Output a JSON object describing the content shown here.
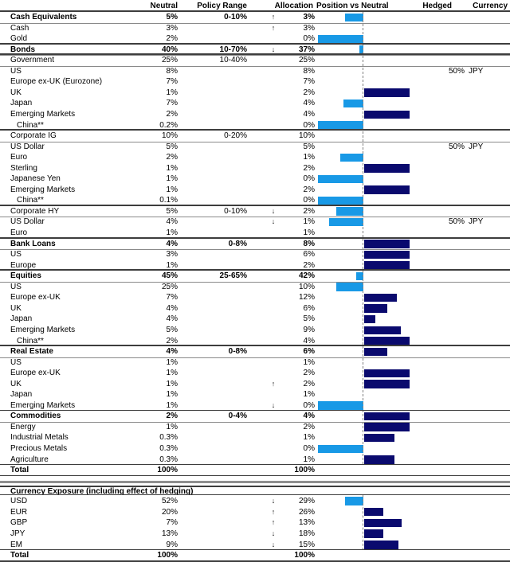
{
  "colors": {
    "underweight_bar": "#1899E6",
    "overweight_bar": "#0A0A6E",
    "rule_dark": "#3d3d3d",
    "rule_gray": "#8a8a8a"
  },
  "header": {
    "columns": [
      "Neutral",
      "Policy Range",
      "Allocation",
      "Position vs Neutral",
      "Hedged",
      "Currency"
    ]
  },
  "allocation_table": {
    "rows": [
      {
        "label": "Cash Equivalents",
        "type": "section",
        "indent": false,
        "neutral": "5%",
        "range": "0-10%",
        "arrow": "↑",
        "allocation": "3%",
        "position": -0.4,
        "hedged": "",
        "currency": ""
      },
      {
        "label": "Cash",
        "type": "detail",
        "indent": false,
        "neutral": "3%",
        "range": "",
        "arrow": "↑",
        "allocation": "3%",
        "position": 0,
        "hedged": "",
        "currency": ""
      },
      {
        "label": "Gold",
        "type": "detail",
        "indent": false,
        "neutral": "2%",
        "range": "",
        "arrow": "",
        "allocation": "0%",
        "position": -1.0,
        "hedged": "",
        "currency": ""
      },
      {
        "label": "Bonds",
        "type": "section",
        "indent": false,
        "neutral": "40%",
        "range": "10-70%",
        "arrow": "↓",
        "allocation": "37%",
        "position": -0.08,
        "hedged": "",
        "currency": ""
      },
      {
        "label": "Government",
        "type": "sub",
        "indent": false,
        "neutral": "25%",
        "range": "10-40%",
        "arrow": "",
        "allocation": "25%",
        "position": 0,
        "hedged": "",
        "currency": ""
      },
      {
        "label": "US",
        "type": "detail",
        "indent": false,
        "neutral": "8%",
        "range": "",
        "arrow": "",
        "allocation": "8%",
        "position": 0,
        "hedged": "50%",
        "currency": "JPY"
      },
      {
        "label": "Europe ex-UK (Eurozone)",
        "type": "detail",
        "indent": false,
        "neutral": "7%",
        "range": "",
        "arrow": "",
        "allocation": "7%",
        "position": 0,
        "hedged": "",
        "currency": ""
      },
      {
        "label": "UK",
        "type": "detail",
        "indent": false,
        "neutral": "1%",
        "range": "",
        "arrow": "",
        "allocation": "2%",
        "position": 1.0,
        "hedged": "",
        "currency": ""
      },
      {
        "label": "Japan",
        "type": "detail",
        "indent": false,
        "neutral": "7%",
        "range": "",
        "arrow": "",
        "allocation": "4%",
        "position": -0.43,
        "hedged": "",
        "currency": ""
      },
      {
        "label": "Emerging Markets",
        "type": "detail",
        "indent": false,
        "neutral": "2%",
        "range": "",
        "arrow": "",
        "allocation": "4%",
        "position": 1.0,
        "hedged": "",
        "currency": ""
      },
      {
        "label": "China**",
        "type": "detail",
        "indent": true,
        "neutral": "0.2%",
        "range": "",
        "arrow": "",
        "allocation": "0%",
        "position": -1.0,
        "hedged": "",
        "currency": ""
      },
      {
        "label": "Corporate IG",
        "type": "sub",
        "indent": false,
        "neutral": "10%",
        "range": "0-20%",
        "arrow": "",
        "allocation": "10%",
        "position": 0,
        "hedged": "",
        "currency": ""
      },
      {
        "label": "US Dollar",
        "type": "detail",
        "indent": false,
        "neutral": "5%",
        "range": "",
        "arrow": "",
        "allocation": "5%",
        "position": 0,
        "hedged": "50%",
        "currency": "JPY"
      },
      {
        "label": "Euro",
        "type": "detail",
        "indent": false,
        "neutral": "2%",
        "range": "",
        "arrow": "",
        "allocation": "1%",
        "position": -0.5,
        "hedged": "",
        "currency": ""
      },
      {
        "label": "Sterling",
        "type": "detail",
        "indent": false,
        "neutral": "1%",
        "range": "",
        "arrow": "",
        "allocation": "2%",
        "position": 1.0,
        "hedged": "",
        "currency": ""
      },
      {
        "label": "Japanese Yen",
        "type": "detail",
        "indent": false,
        "neutral": "1%",
        "range": "",
        "arrow": "",
        "allocation": "0%",
        "position": -1.0,
        "hedged": "",
        "currency": ""
      },
      {
        "label": "Emerging Markets",
        "type": "detail",
        "indent": false,
        "neutral": "1%",
        "range": "",
        "arrow": "",
        "allocation": "2%",
        "position": 1.0,
        "hedged": "",
        "currency": ""
      },
      {
        "label": "China**",
        "type": "detail",
        "indent": true,
        "neutral": "0.1%",
        "range": "",
        "arrow": "",
        "allocation": "0%",
        "position": -1.0,
        "hedged": "",
        "currency": ""
      },
      {
        "label": "Corporate HY",
        "type": "sub",
        "indent": false,
        "neutral": "5%",
        "range": "0-10%",
        "arrow": "↓",
        "allocation": "2%",
        "position": -0.6,
        "hedged": "",
        "currency": ""
      },
      {
        "label": "US Dollar",
        "type": "detail",
        "indent": false,
        "neutral": "4%",
        "range": "",
        "arrow": "↓",
        "allocation": "1%",
        "position": -0.75,
        "hedged": "50%",
        "currency": "JPY"
      },
      {
        "label": "Euro",
        "type": "detail",
        "indent": false,
        "neutral": "1%",
        "range": "",
        "arrow": "",
        "allocation": "1%",
        "position": 0,
        "hedged": "",
        "currency": ""
      },
      {
        "label": "Bank Loans",
        "type": "section",
        "indent": false,
        "neutral": "4%",
        "range": "0-8%",
        "arrow": "",
        "allocation": "8%",
        "position": 1.0,
        "hedged": "",
        "currency": ""
      },
      {
        "label": "US",
        "type": "detail",
        "indent": false,
        "neutral": "3%",
        "range": "",
        "arrow": "",
        "allocation": "6%",
        "position": 1.0,
        "hedged": "",
        "currency": ""
      },
      {
        "label": "Europe",
        "type": "detail",
        "indent": false,
        "neutral": "1%",
        "range": "",
        "arrow": "",
        "allocation": "2%",
        "position": 1.0,
        "hedged": "",
        "currency": ""
      },
      {
        "label": "Equities",
        "type": "section",
        "indent": false,
        "neutral": "45%",
        "range": "25-65%",
        "arrow": "",
        "allocation": "42%",
        "position": -0.15,
        "hedged": "",
        "currency": ""
      },
      {
        "label": "US",
        "type": "detail",
        "indent": false,
        "neutral": "25%",
        "range": "",
        "arrow": "",
        "allocation": "10%",
        "position": -0.6,
        "hedged": "",
        "currency": ""
      },
      {
        "label": "Europe ex-UK",
        "type": "detail",
        "indent": false,
        "neutral": "7%",
        "range": "",
        "arrow": "",
        "allocation": "12%",
        "position": 0.72,
        "hedged": "",
        "currency": ""
      },
      {
        "label": "UK",
        "type": "detail",
        "indent": false,
        "neutral": "4%",
        "range": "",
        "arrow": "",
        "allocation": "6%",
        "position": 0.5,
        "hedged": "",
        "currency": ""
      },
      {
        "label": "Japan",
        "type": "detail",
        "indent": false,
        "neutral": "4%",
        "range": "",
        "arrow": "",
        "allocation": "5%",
        "position": 0.25,
        "hedged": "",
        "currency": ""
      },
      {
        "label": "Emerging Markets",
        "type": "detail",
        "indent": false,
        "neutral": "5%",
        "range": "",
        "arrow": "",
        "allocation": "9%",
        "position": 0.8,
        "hedged": "",
        "currency": ""
      },
      {
        "label": "China**",
        "type": "detail",
        "indent": true,
        "neutral": "2%",
        "range": "",
        "arrow": "",
        "allocation": "4%",
        "position": 1.0,
        "hedged": "",
        "currency": ""
      },
      {
        "label": "Real Estate",
        "type": "section",
        "indent": false,
        "neutral": "4%",
        "range": "0-8%",
        "arrow": "",
        "allocation": "6%",
        "position": 0.5,
        "hedged": "",
        "currency": ""
      },
      {
        "label": "US",
        "type": "detail",
        "indent": false,
        "neutral": "1%",
        "range": "",
        "arrow": "",
        "allocation": "1%",
        "position": 0,
        "hedged": "",
        "currency": ""
      },
      {
        "label": "Europe ex-UK",
        "type": "detail",
        "indent": false,
        "neutral": "1%",
        "range": "",
        "arrow": "",
        "allocation": "2%",
        "position": 1.0,
        "hedged": "",
        "currency": ""
      },
      {
        "label": "UK",
        "type": "detail",
        "indent": false,
        "neutral": "1%",
        "range": "",
        "arrow": "↑",
        "allocation": "2%",
        "position": 1.0,
        "hedged": "",
        "currency": ""
      },
      {
        "label": "Japan",
        "type": "detail",
        "indent": false,
        "neutral": "1%",
        "range": "",
        "arrow": "",
        "allocation": "1%",
        "position": 0,
        "hedged": "",
        "currency": ""
      },
      {
        "label": "Emerging Markets",
        "type": "detail",
        "indent": false,
        "neutral": "1%",
        "range": "",
        "arrow": "↓",
        "allocation": "0%",
        "position": -1.0,
        "hedged": "",
        "currency": ""
      },
      {
        "label": "Commodities",
        "type": "section",
        "indent": false,
        "neutral": "2%",
        "range": "0-4%",
        "arrow": "",
        "allocation": "4%",
        "position": 1.0,
        "hedged": "",
        "currency": ""
      },
      {
        "label": "Energy",
        "type": "detail",
        "indent": false,
        "neutral": "1%",
        "range": "",
        "arrow": "",
        "allocation": "2%",
        "position": 1.0,
        "hedged": "",
        "currency": ""
      },
      {
        "label": "Industrial Metals",
        "type": "detail",
        "indent": false,
        "neutral": "0.3%",
        "range": "",
        "arrow": "",
        "allocation": "1%",
        "position": 0.67,
        "hedged": "",
        "currency": ""
      },
      {
        "label": "Precious Metals",
        "type": "detail",
        "indent": false,
        "neutral": "0.3%",
        "range": "",
        "arrow": "",
        "allocation": "0%",
        "position": -1.0,
        "hedged": "",
        "currency": ""
      },
      {
        "label": "Agriculture",
        "type": "detail",
        "indent": false,
        "neutral": "0.3%",
        "range": "",
        "arrow": "",
        "allocation": "1%",
        "position": 0.67,
        "hedged": "",
        "currency": ""
      },
      {
        "label": "Total",
        "type": "total",
        "indent": false,
        "neutral": "100%",
        "range": "",
        "arrow": "",
        "allocation": "100%",
        "position": 0,
        "hedged": "",
        "currency": ""
      }
    ]
  },
  "currency_table": {
    "title": "Currency Exposure (including effect of hedging)",
    "rows": [
      {
        "label": "USD",
        "type": "detail",
        "indent": false,
        "neutral": "52%",
        "range": "",
        "arrow": "↓",
        "allocation": "29%",
        "position": -0.4,
        "hedged": "",
        "currency": ""
      },
      {
        "label": "EUR",
        "type": "detail",
        "indent": false,
        "neutral": "20%",
        "range": "",
        "arrow": "↑",
        "allocation": "26%",
        "position": 0.42,
        "hedged": "",
        "currency": ""
      },
      {
        "label": "GBP",
        "type": "detail",
        "indent": false,
        "neutral": "7%",
        "range": "",
        "arrow": "↑",
        "allocation": "13%",
        "position": 0.83,
        "hedged": "",
        "currency": ""
      },
      {
        "label": "JPY",
        "type": "detail",
        "indent": false,
        "neutral": "13%",
        "range": "",
        "arrow": "↓",
        "allocation": "18%",
        "position": 0.42,
        "hedged": "",
        "currency": ""
      },
      {
        "label": "EM",
        "type": "detail",
        "indent": false,
        "neutral": "9%",
        "range": "",
        "arrow": "↓",
        "allocation": "15%",
        "position": 0.76,
        "hedged": "",
        "currency": ""
      },
      {
        "label": "Total",
        "type": "total",
        "indent": false,
        "neutral": "100%",
        "range": "",
        "arrow": "",
        "allocation": "100%",
        "position": 0,
        "hedged": "",
        "currency": ""
      }
    ]
  }
}
